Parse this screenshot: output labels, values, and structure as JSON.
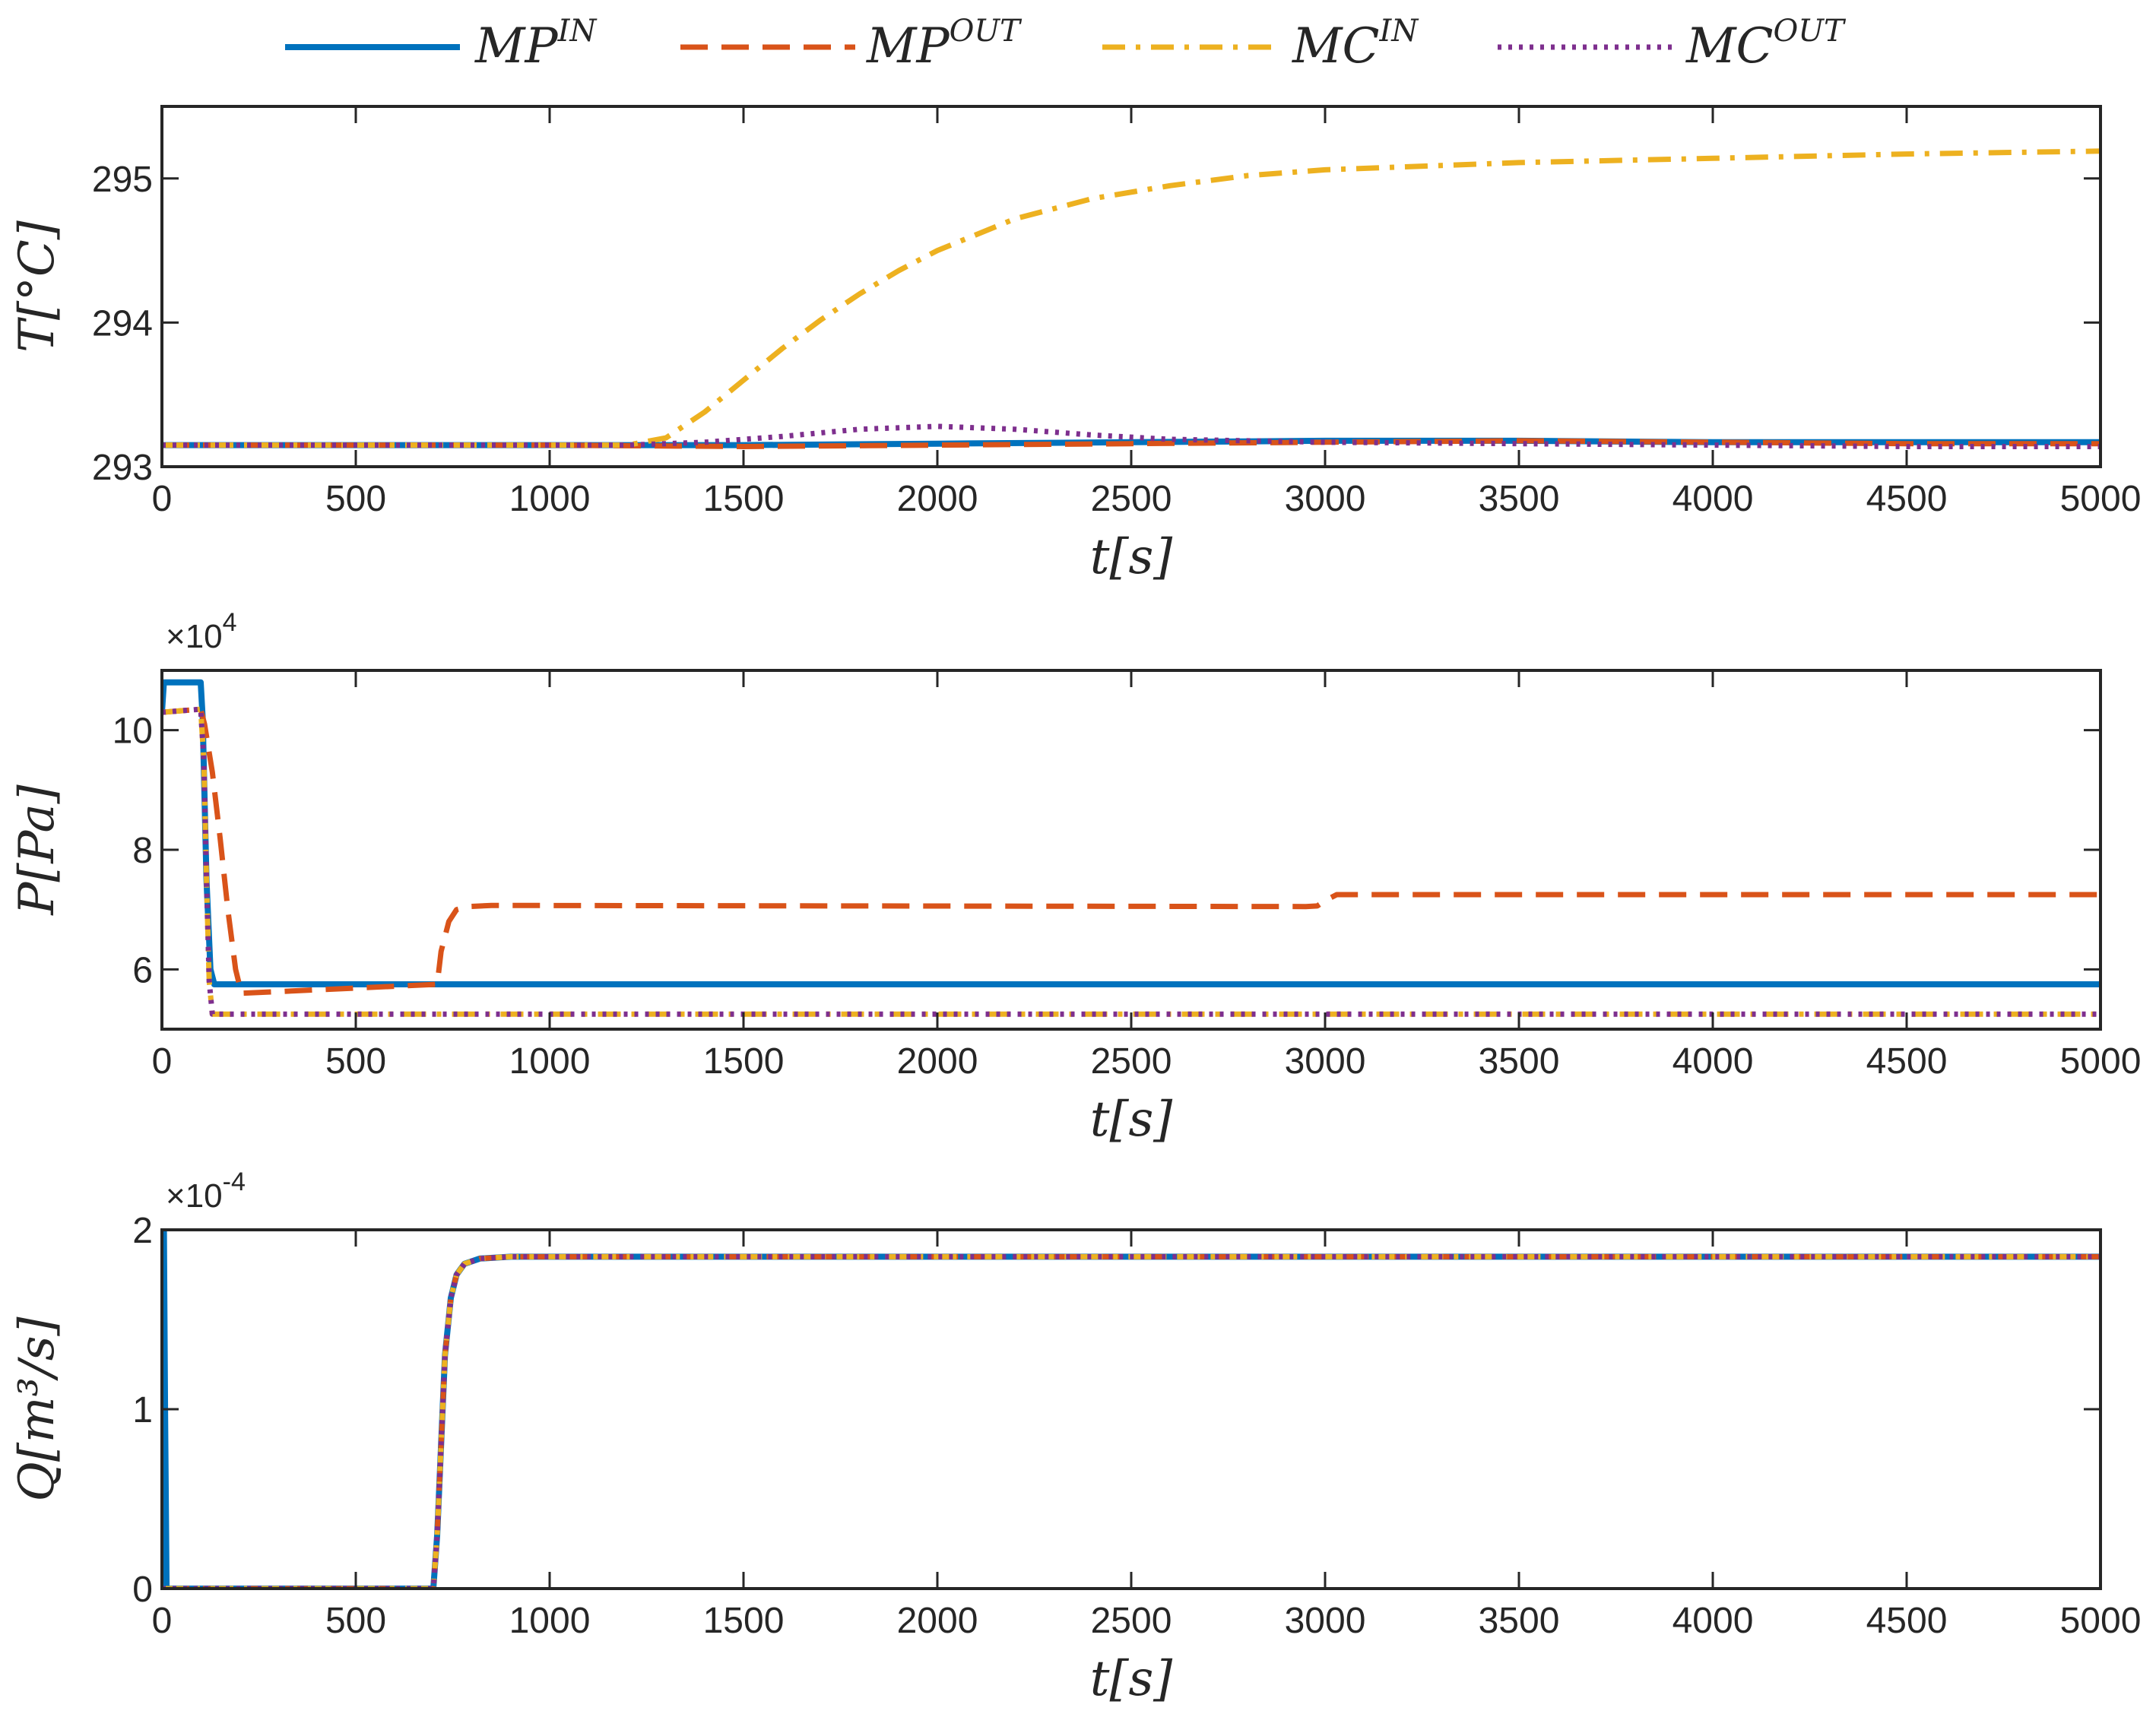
{
  "legend": {
    "position": "top",
    "entries": [
      {
        "base": "MP",
        "sup": "IN",
        "color": "#0072BD",
        "dash": "solid"
      },
      {
        "base": "MP",
        "sup": "OUT",
        "color": "#D95319",
        "dash": "dashed"
      },
      {
        "base": "MC",
        "sup": "IN",
        "color": "#EDB120",
        "dash": "dashdot"
      },
      {
        "base": "MC",
        "sup": "OUT",
        "color": "#7E2F8E",
        "dash": "dotted"
      }
    ]
  },
  "chart_data": [
    {
      "type": "line",
      "title": "",
      "xlabel": "t[s]",
      "ylabel": "T[°C]",
      "xlim": [
        0,
        5000
      ],
      "ylim": [
        293,
        295.5
      ],
      "xticks": [
        0,
        500,
        1000,
        1500,
        2000,
        2500,
        3000,
        3500,
        4000,
        4500,
        5000
      ],
      "yticks": [
        293,
        294,
        295
      ],
      "y_exponent": "",
      "series": [
        {
          "name": "MP^IN",
          "x": [
            0,
            1000,
            1500,
            2000,
            2500,
            3000,
            3500,
            4000,
            4500,
            5000
          ],
          "y": [
            293.15,
            293.15,
            293.15,
            293.16,
            293.17,
            293.18,
            293.18,
            293.17,
            293.17,
            293.17
          ]
        },
        {
          "name": "MP^OUT",
          "x": [
            0,
            1000,
            1500,
            2000,
            2500,
            3000,
            3500,
            4000,
            4500,
            5000
          ],
          "y": [
            293.15,
            293.15,
            293.14,
            293.15,
            293.16,
            293.17,
            293.18,
            293.17,
            293.16,
            293.16
          ]
        },
        {
          "name": "MC^IN",
          "x": [
            0,
            1000,
            1200,
            1300,
            1400,
            1500,
            1600,
            1700,
            1800,
            1900,
            2000,
            2200,
            2400,
            2600,
            2800,
            3000,
            3500,
            4000,
            4500,
            5000
          ],
          "y": [
            293.15,
            293.15,
            293.15,
            293.2,
            293.38,
            293.6,
            293.82,
            294.02,
            294.2,
            294.36,
            294.5,
            294.72,
            294.86,
            294.95,
            295.02,
            295.06,
            295.11,
            295.14,
            295.17,
            295.19
          ]
        },
        {
          "name": "MC^OUT",
          "x": [
            0,
            1000,
            1200,
            1400,
            1600,
            1800,
            2000,
            2200,
            2400,
            2600,
            2800,
            3000,
            3500,
            4000,
            4500,
            5000
          ],
          "y": [
            293.15,
            293.15,
            293.15,
            293.17,
            293.21,
            293.26,
            293.28,
            293.26,
            293.22,
            293.19,
            293.18,
            293.17,
            293.16,
            293.15,
            293.14,
            293.14
          ]
        }
      ]
    },
    {
      "type": "line",
      "title": "",
      "xlabel": "t[s]",
      "ylabel": "P[Pa]",
      "xlim": [
        0,
        5000
      ],
      "ylim": [
        5,
        11
      ],
      "xticks": [
        0,
        500,
        1000,
        1500,
        2000,
        2500,
        3000,
        3500,
        4000,
        4500,
        5000
      ],
      "yticks": [
        6,
        8,
        10
      ],
      "y_exponent": "×10^4",
      "series": [
        {
          "name": "MP^IN",
          "x": [
            0,
            5,
            100,
            105,
            115,
            125,
            135,
            5000
          ],
          "y": [
            10.3,
            10.8,
            10.8,
            10.2,
            7.5,
            6.0,
            5.75,
            5.75
          ]
        },
        {
          "name": "MP^OUT",
          "x": [
            0,
            100,
            110,
            130,
            150,
            170,
            190,
            205,
            710,
            720,
            740,
            760,
            790,
            850,
            2950,
            2980,
            3000,
            3030,
            3100,
            5000
          ],
          "y": [
            10.3,
            10.35,
            10.1,
            9.3,
            8.2,
            7.0,
            6.0,
            5.6,
            5.75,
            6.3,
            6.8,
            7.0,
            7.05,
            7.07,
            7.05,
            7.06,
            7.15,
            7.25,
            7.25,
            7.25
          ]
        },
        {
          "name": "MC^IN",
          "x": [
            0,
            100,
            108,
            115,
            122,
            130,
            5000
          ],
          "y": [
            10.3,
            10.35,
            9.5,
            7.5,
            5.8,
            5.25,
            5.25
          ]
        },
        {
          "name": "MC^OUT",
          "x": [
            0,
            100,
            108,
            115,
            122,
            130,
            5000
          ],
          "y": [
            10.3,
            10.35,
            9.5,
            7.5,
            5.8,
            5.25,
            5.25
          ]
        }
      ]
    },
    {
      "type": "line",
      "title": "",
      "xlabel": "t[s]",
      "ylabel": "Q[m³/s]",
      "xlim": [
        0,
        5000
      ],
      "ylim": [
        0,
        2
      ],
      "xticks": [
        0,
        500,
        1000,
        1500,
        2000,
        2500,
        3000,
        3500,
        4000,
        4500,
        5000
      ],
      "yticks": [
        0,
        1,
        2
      ],
      "y_exponent": "×10^-4",
      "series": [
        {
          "name": "MP^IN",
          "x": [
            0,
            5,
            8,
            12,
            700,
            710,
            720,
            730,
            745,
            760,
            780,
            820,
            900,
            5000
          ],
          "y": [
            2.0,
            2.0,
            1.0,
            0,
            0,
            0.3,
            0.8,
            1.3,
            1.62,
            1.75,
            1.81,
            1.84,
            1.85,
            1.85
          ]
        },
        {
          "name": "MP^OUT",
          "x": [
            0,
            700,
            710,
            720,
            730,
            745,
            760,
            780,
            820,
            900,
            5000
          ],
          "y": [
            0,
            0,
            0.3,
            0.8,
            1.3,
            1.62,
            1.75,
            1.81,
            1.84,
            1.85,
            1.85
          ]
        },
        {
          "name": "MC^IN",
          "x": [
            0,
            700,
            710,
            720,
            730,
            745,
            760,
            780,
            820,
            900,
            5000
          ],
          "y": [
            0,
            0,
            0.3,
            0.8,
            1.3,
            1.62,
            1.75,
            1.81,
            1.84,
            1.85,
            1.85
          ]
        },
        {
          "name": "MC^OUT",
          "x": [
            0,
            700,
            710,
            720,
            730,
            745,
            760,
            780,
            820,
            900,
            5000
          ],
          "y": [
            0,
            0,
            0.3,
            0.8,
            1.3,
            1.62,
            1.75,
            1.81,
            1.84,
            1.85,
            1.85
          ]
        }
      ]
    }
  ]
}
